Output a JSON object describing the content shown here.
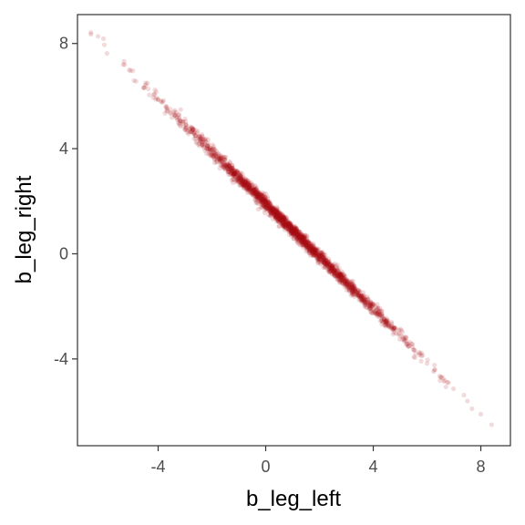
{
  "chart_data": {
    "type": "scatter",
    "title": "",
    "xlabel": "b_leg_left",
    "ylabel": "b_leg_right",
    "xlim": [
      -7.0,
      9.1
    ],
    "ylim": [
      -7.3,
      9.1
    ],
    "x_ticks": [
      -4,
      0,
      4,
      8
    ],
    "y_ticks": [
      -4,
      0,
      4,
      8
    ],
    "x_tick_labels": [
      "-4",
      "0",
      "4",
      "8"
    ],
    "y_tick_labels": [
      "-4",
      "0",
      "4",
      "8"
    ],
    "grid": false,
    "relationship": {
      "form": "y = a + b*x",
      "intercept": 1.9,
      "slope": -1.0
    },
    "x_range_of_points": [
      -6.5,
      8.5
    ],
    "point_color": "#a50f15",
    "point_alpha": 0.15,
    "extreme_points": [
      {
        "x": -6.5,
        "y": 8.35
      },
      {
        "x": -6.0,
        "y": 7.95
      },
      {
        "x": -5.3,
        "y": 7.2
      },
      {
        "x": 6.8,
        "y": -4.9
      },
      {
        "x": 7.5,
        "y": -5.6
      },
      {
        "x": 8.0,
        "y": -6.1
      },
      {
        "x": 8.4,
        "y": -6.5
      }
    ]
  }
}
